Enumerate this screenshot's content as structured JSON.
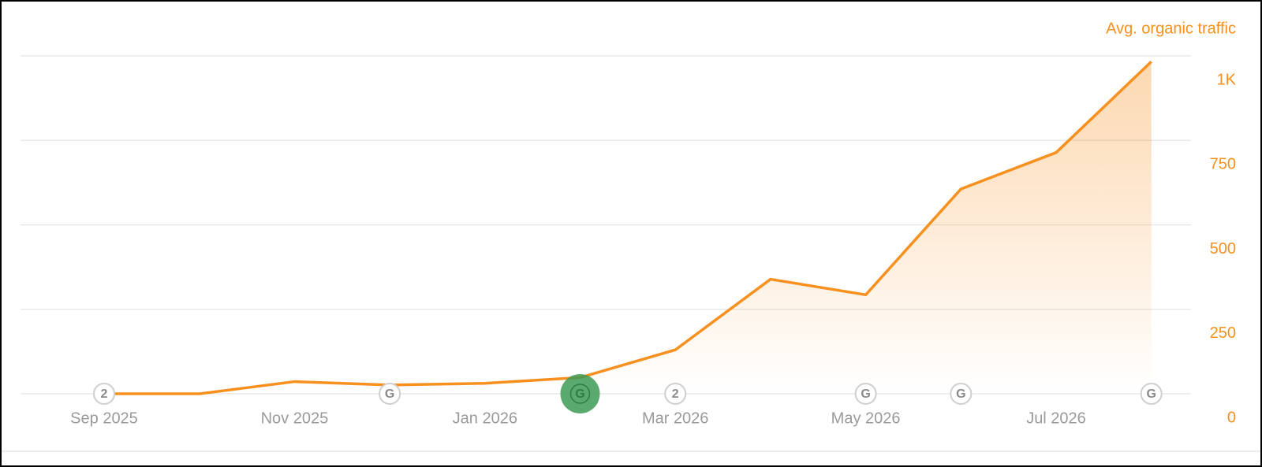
{
  "chart_data": {
    "type": "area",
    "y_axis_title": "Avg. organic traffic",
    "categories": [
      "Sep 2025",
      null,
      "Nov 2025",
      null,
      "Jan 2026",
      null,
      "Mar 2026",
      null,
      "May 2026",
      null,
      "Jul 2026",
      null
    ],
    "series": [
      {
        "name": "Avg. organic traffic",
        "color": "#f7901e",
        "values": [
          0,
          0,
          36,
          26,
          31,
          48,
          130,
          339,
          293,
          606,
          714,
          983
        ]
      }
    ],
    "event_labels": [
      "2",
      null,
      null,
      "G",
      null,
      "G",
      "2",
      null,
      "G",
      "G",
      null,
      "G"
    ],
    "event_highlight": [
      false,
      false,
      false,
      false,
      false,
      true,
      false,
      false,
      false,
      false,
      false,
      false
    ],
    "highlight_color": "#3d9a55",
    "ylim": [
      0,
      1000
    ],
    "yticks": [
      0,
      250,
      500,
      750,
      {
        "value": 1000,
        "label": "1K"
      }
    ],
    "grid": true
  }
}
